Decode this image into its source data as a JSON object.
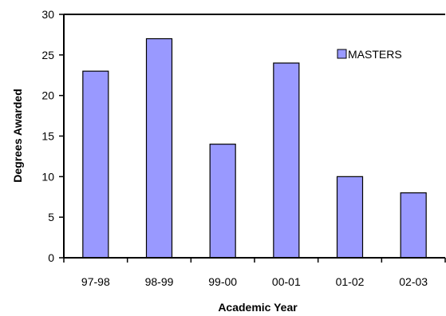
{
  "chart_data": {
    "type": "bar",
    "categories": [
      "97-98",
      "98-99",
      "99-00",
      "00-01",
      "01-02",
      "02-03"
    ],
    "series": [
      {
        "name": "MASTERS",
        "values": [
          23,
          27,
          14,
          24,
          10,
          8
        ],
        "color": "#9999ff"
      }
    ],
    "title": "",
    "xlabel": "Academic Year",
    "ylabel": "Degrees Awarded",
    "ylim": [
      0,
      30
    ],
    "yticks": [
      0,
      5,
      10,
      15,
      20,
      25,
      30
    ],
    "grid": false,
    "legend_position": "top-right"
  }
}
